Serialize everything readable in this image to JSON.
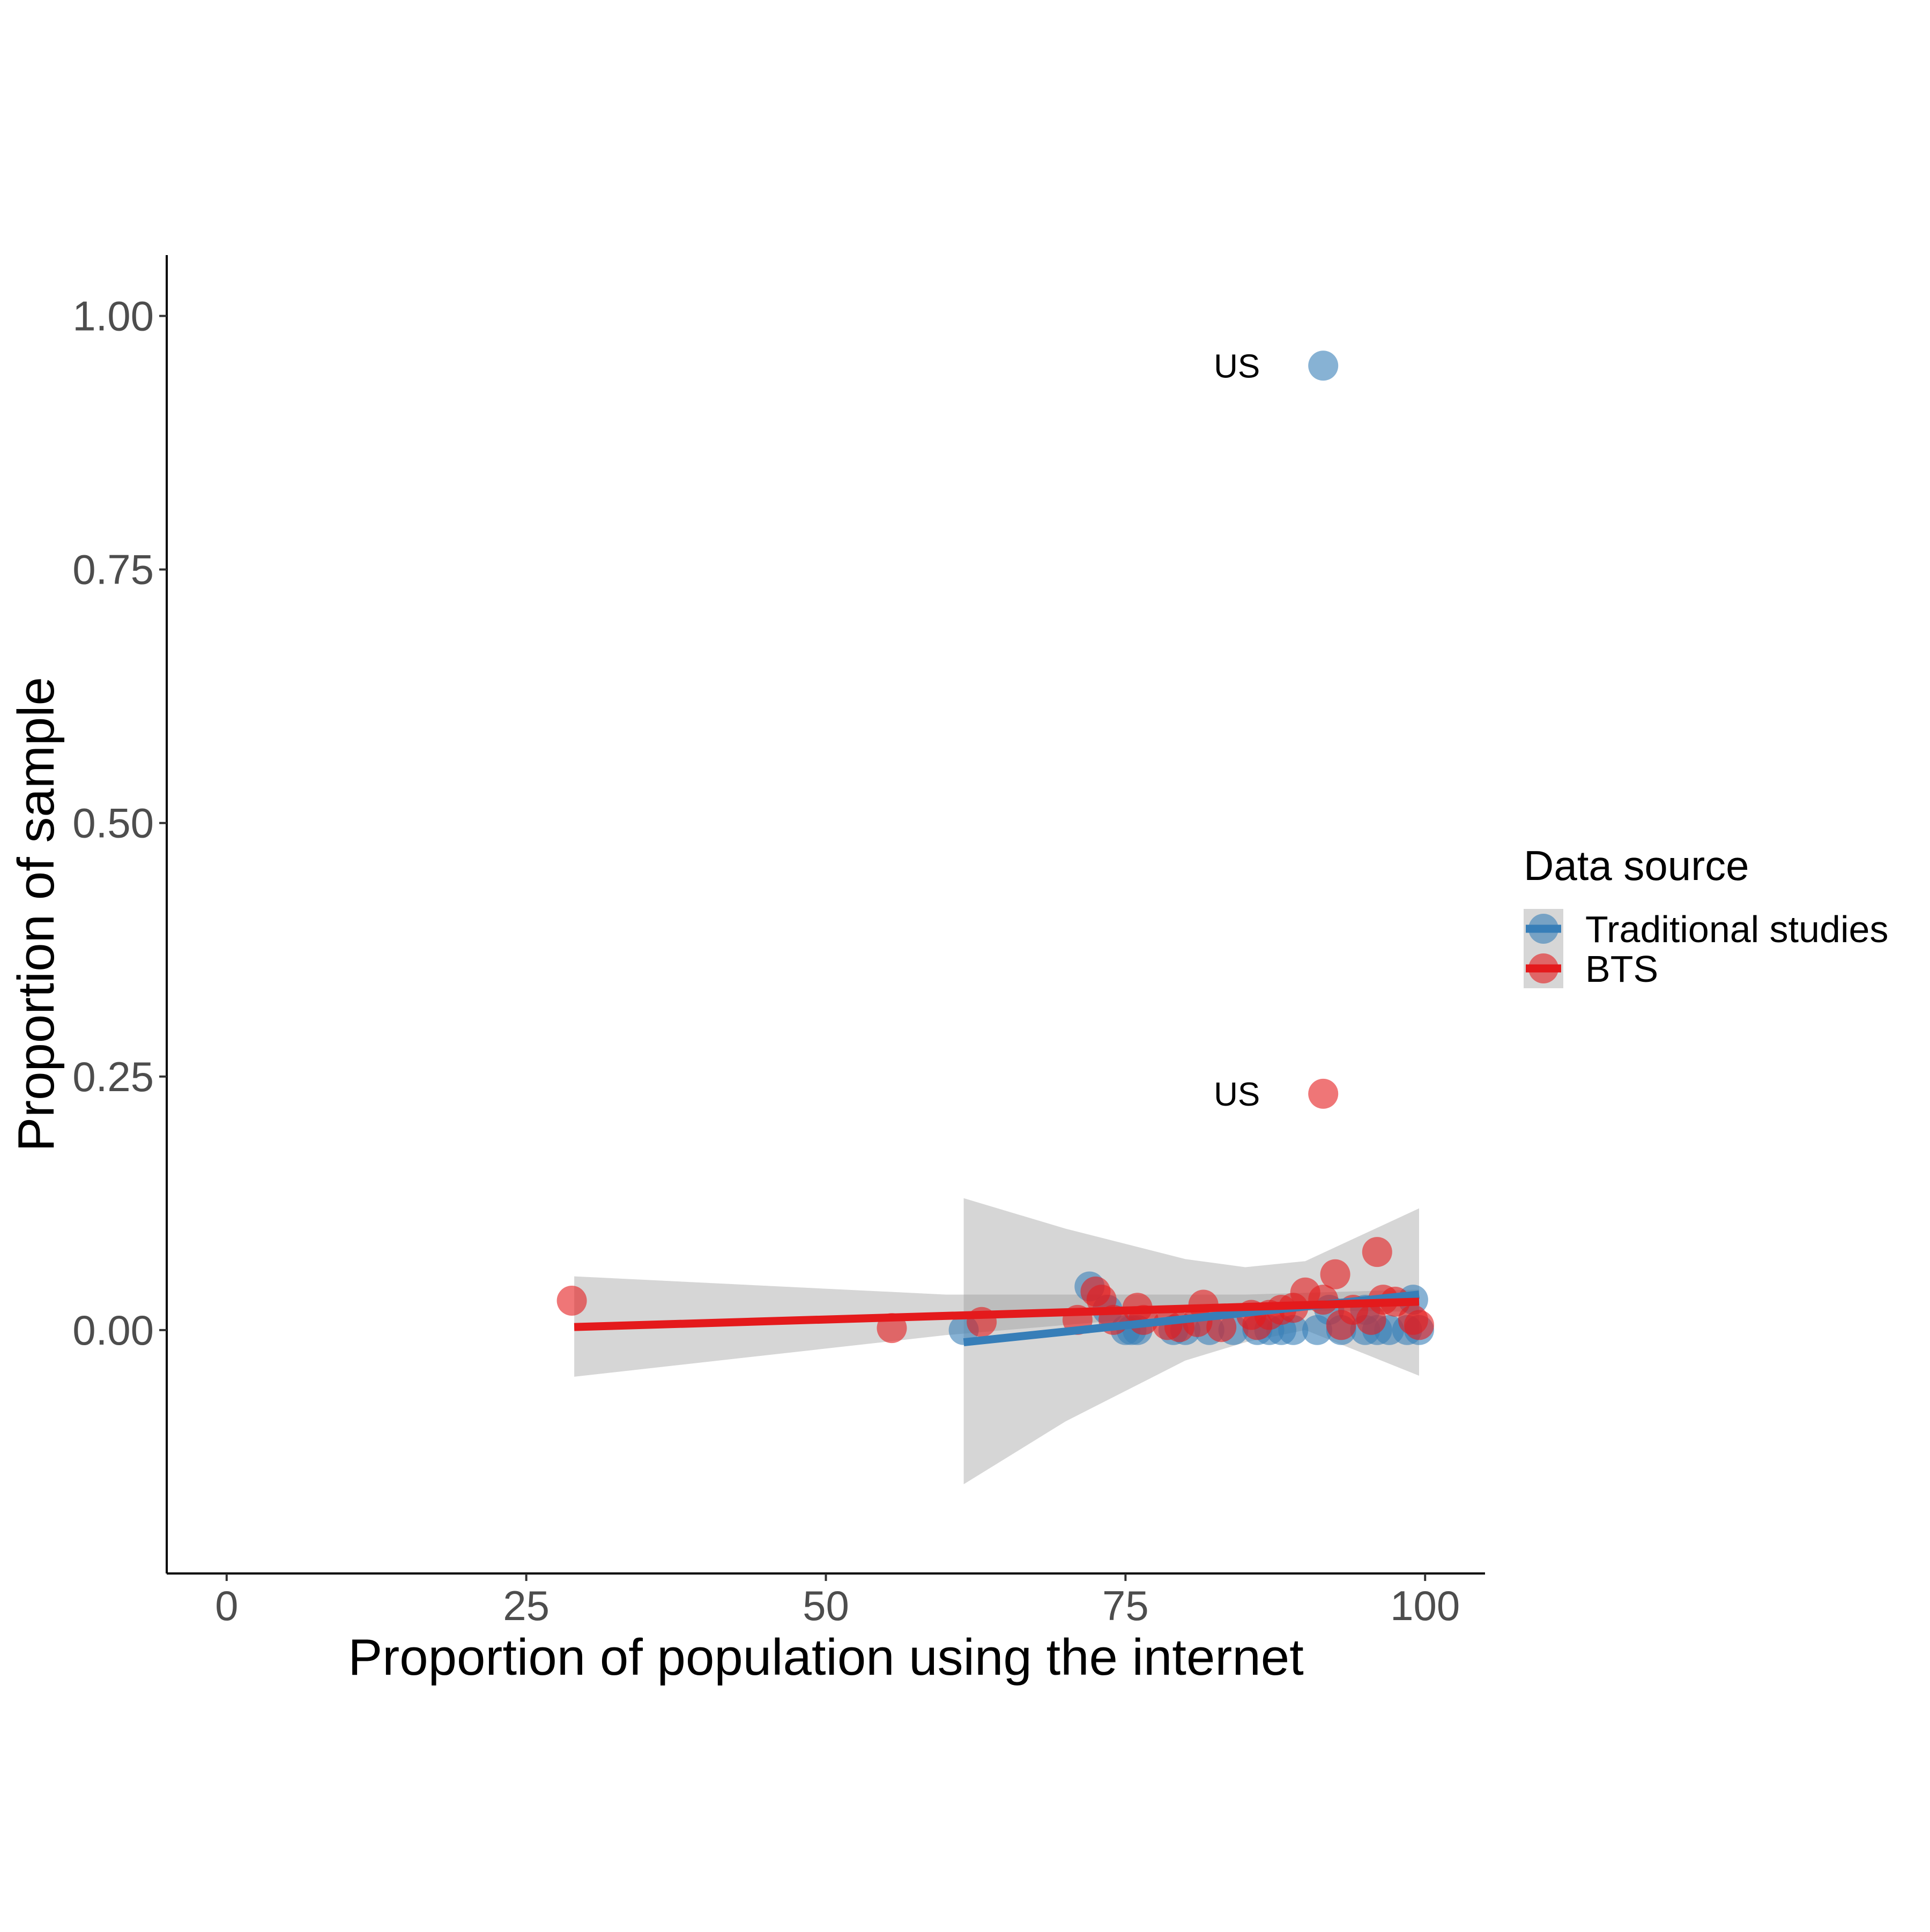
{
  "chart_data": {
    "type": "scatter",
    "title": "",
    "xlabel": "Proportion of population using the internet",
    "ylabel": "Proportion of sample",
    "xlim": [
      -5,
      105
    ],
    "ylim": [
      -0.24,
      1.06
    ],
    "x_ticks": [
      0,
      25,
      50,
      75,
      100
    ],
    "x_tick_labels": [
      "0",
      "25",
      "50",
      "75",
      "100"
    ],
    "y_ticks": [
      0,
      0.25,
      0.5,
      0.75,
      1.0
    ],
    "y_tick_labels": [
      "0.00",
      "0.25",
      "0.50",
      "0.75",
      "1.00"
    ],
    "grid": false,
    "legend": {
      "title": "Data source",
      "position": "right"
    },
    "series": [
      {
        "name": "Traditional studies",
        "color": "#377EB8",
        "points": [
          [
            61.5,
            0.0
          ],
          [
            72,
            0.043
          ],
          [
            73.5,
            0.02
          ],
          [
            75,
            0.0
          ],
          [
            75.5,
            0.0
          ],
          [
            76,
            0.0
          ],
          [
            79,
            0.0
          ],
          [
            80,
            0.0
          ],
          [
            82,
            0.0
          ],
          [
            84,
            0.0
          ],
          [
            86,
            0.0
          ],
          [
            87,
            0.0
          ],
          [
            88,
            0.0
          ],
          [
            89,
            0.0
          ],
          [
            91,
            0.0
          ],
          [
            93,
            0.0
          ],
          [
            95,
            0.0
          ],
          [
            96,
            0.0
          ],
          [
            97,
            0.0
          ],
          [
            98.5,
            0.0
          ],
          [
            99,
            0.03
          ],
          [
            99.5,
            0.0
          ],
          [
            92,
            0.02
          ],
          [
            95,
            0.02
          ],
          [
            91.5,
            0.951
          ]
        ],
        "labels": [
          {
            "x": 91.5,
            "y": 0.951,
            "text": "US"
          }
        ],
        "fit": {
          "x": [
            61.5,
            99.5
          ],
          "y": [
            -0.012,
            0.035
          ]
        },
        "ci": {
          "x": [
            61.5,
            70,
            80,
            85,
            90,
            99.5
          ],
          "upper": [
            0.13,
            0.1,
            0.07,
            0.062,
            0.068,
            0.12
          ],
          "lower": [
            -0.152,
            -0.09,
            -0.03,
            -0.012,
            0.0,
            -0.045
          ]
        }
      },
      {
        "name": "BTS",
        "color": "#E41A1C",
        "points": [
          [
            28.8,
            0.029
          ],
          [
            55.5,
            0.002
          ],
          [
            63,
            0.008
          ],
          [
            71,
            0.01
          ],
          [
            72.5,
            0.038
          ],
          [
            73,
            0.03
          ],
          [
            74,
            0.01
          ],
          [
            76,
            0.022
          ],
          [
            76.5,
            0.01
          ],
          [
            78.5,
            0.005
          ],
          [
            79.5,
            0.003
          ],
          [
            81.5,
            0.025
          ],
          [
            81,
            0.008
          ],
          [
            83,
            0.003
          ],
          [
            85.5,
            0.015
          ],
          [
            86,
            0.005
          ],
          [
            87,
            0.015
          ],
          [
            88,
            0.02
          ],
          [
            89,
            0.022
          ],
          [
            90,
            0.037
          ],
          [
            91.5,
            0.03
          ],
          [
            92.5,
            0.055
          ],
          [
            93,
            0.005
          ],
          [
            94,
            0.02
          ],
          [
            95.5,
            0.01
          ],
          [
            96,
            0.077
          ],
          [
            96.5,
            0.03
          ],
          [
            97.5,
            0.028
          ],
          [
            99,
            0.01
          ],
          [
            99.5,
            0.005
          ],
          [
            91.5,
            0.233
          ]
        ],
        "labels": [
          {
            "x": 91.5,
            "y": 0.233,
            "text": "US"
          }
        ],
        "fit": {
          "x": [
            29,
            99.5
          ],
          "y": [
            0.003,
            0.028
          ]
        },
        "ci": {
          "x": [
            29,
            60,
            85,
            99.5
          ],
          "upper": [
            0.053,
            0.035,
            0.035,
            0.04
          ],
          "lower": [
            -0.046,
            -0.005,
            0.02,
            0.018
          ]
        }
      }
    ]
  }
}
